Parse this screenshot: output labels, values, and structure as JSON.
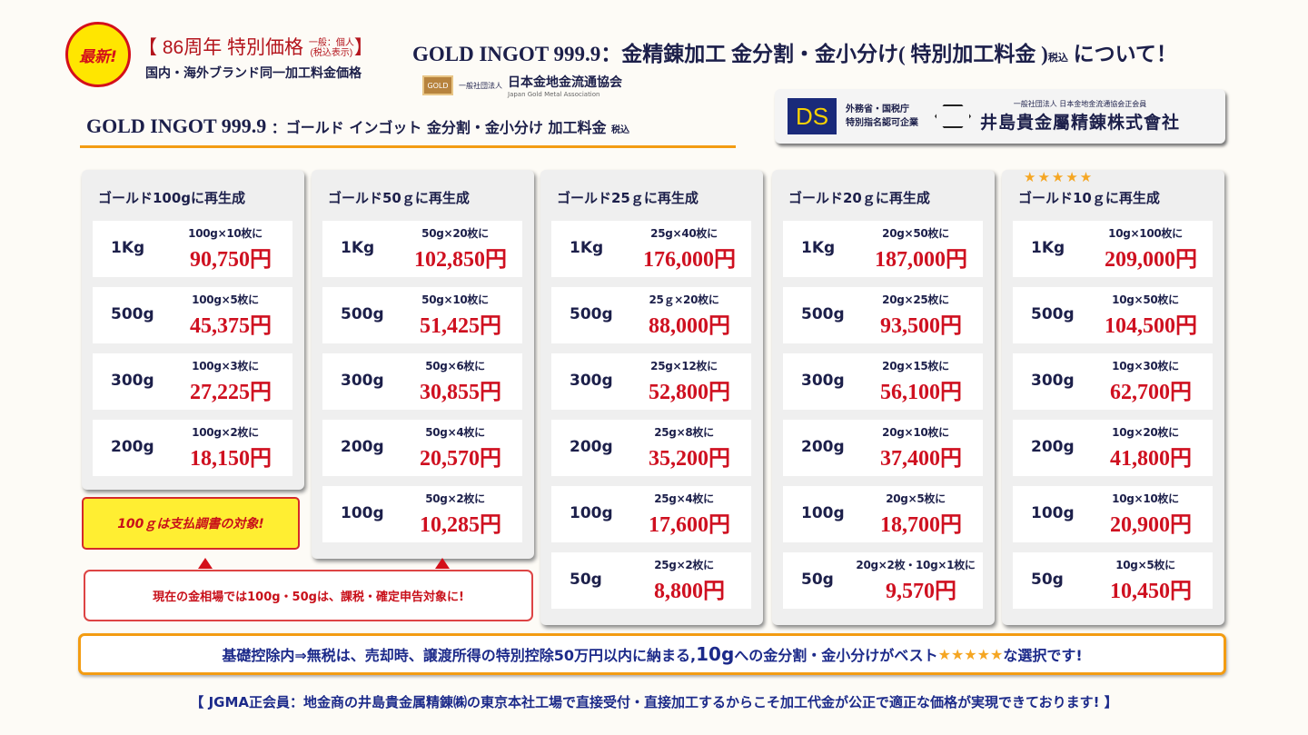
{
  "header": {
    "badge": "最新!",
    "anniversary": "【 86周年 特別価格",
    "tax_note_1": "一般：個人",
    "tax_note_2": "(税込表示)",
    "anniversary_close": "】",
    "subtitle": "国内・海外ブランド同一加工料金価格",
    "title": "GOLD INGOT 999.9：金精錬加工 金分割・金小分け( 特別加工料金 )",
    "title_tax": "税込",
    "title_end": "について！",
    "assoc_logo": "GOLD",
    "assoc_prefix": "一般社団法人",
    "assoc_name": "日本金地金流通協会",
    "assoc_en": "Japan Gold Metal Association"
  },
  "section": {
    "title_en": "GOLD INGOT 999.9",
    "title_jp": "：ゴールド インゴット 金分割・金小分け 加工料金",
    "tax": "税込"
  },
  "company": {
    "ds": "DS",
    "line1": "外務省・国税庁",
    "line2": "特別指名認可企業",
    "member": "一般社団法人 日本金地金流通協会正会員",
    "name": "井島貴金屬精錬株式會社"
  },
  "cards": [
    {
      "title": "ゴールド100gに再生成",
      "rows": [
        [
          "1Kg",
          "100g×10枚に",
          "90,750円"
        ],
        [
          "500g",
          "100g×5枚に",
          "45,375円"
        ],
        [
          "300g",
          "100g×3枚に",
          "27,225円"
        ],
        [
          "200g",
          "100g×2枚に",
          "18,150円"
        ]
      ]
    },
    {
      "title": "ゴールド50ｇに再生成",
      "rows": [
        [
          "1Kg",
          "50g×20枚に",
          "102,850円"
        ],
        [
          "500g",
          "50g×10枚に",
          "51,425円"
        ],
        [
          "300g",
          "50g×6枚に",
          "30,855円"
        ],
        [
          "200g",
          "50g×4枚に",
          "20,570円"
        ],
        [
          "100g",
          "50g×2枚に",
          "10,285円"
        ]
      ]
    },
    {
      "title": "ゴールド25ｇに再生成",
      "rows": [
        [
          "1Kg",
          "25g×40枚に",
          "176,000円"
        ],
        [
          "500g",
          "25ｇ×20枚に",
          "88,000円"
        ],
        [
          "300g",
          "25g×12枚に",
          "52,800円"
        ],
        [
          "200g",
          "25g×8枚に",
          "35,200円"
        ],
        [
          "100g",
          "25g×4枚に",
          "17,600円"
        ],
        [
          "50g",
          "25g×2枚に",
          "8,800円"
        ]
      ]
    },
    {
      "title": "ゴールド20ｇに再生成",
      "rows": [
        [
          "1Kg",
          "20g×50枚に",
          "187,000円"
        ],
        [
          "500g",
          "20g×25枚に",
          "93,500円"
        ],
        [
          "300g",
          "20g×15枚に",
          "56,100円"
        ],
        [
          "200g",
          "20g×10枚に",
          "37,400円"
        ],
        [
          "100g",
          "20g×5枚に",
          "18,700円"
        ],
        [
          "50g",
          "20g×2枚・10g×1枚に",
          "9,570円"
        ]
      ]
    },
    {
      "title": "ゴールド10ｇに再生成",
      "stars": "★★★★★",
      "rows": [
        [
          "1Kg",
          "10g×100枚に",
          "209,000円"
        ],
        [
          "500g",
          "10g×50枚に",
          "104,500円"
        ],
        [
          "300g",
          "10g×30枚に",
          "62,700円"
        ],
        [
          "200g",
          "10g×20枚に",
          "41,800円"
        ],
        [
          "100g",
          "10g×10枚に",
          "20,900円"
        ],
        [
          "50g",
          "10g×5枚に",
          "10,450円"
        ]
      ]
    }
  ],
  "notes": {
    "yellow": "100ｇは支払調書の対象!",
    "pink": "現在の金相場では100g・50gは、課税・確定申告対象に!"
  },
  "banner": {
    "pre": "基礎控除内⇒無税は、売却時、譲渡所得の特別控除50万円以内に納まる,",
    "big": "10g",
    "mid": "への金分割・金小分けがベスト",
    "stars": "★★★★★",
    "post": "な選択です!"
  },
  "footer": "【 JGMA正会員：地金商の井島貴金属精錬㈱の東京本社工場で直接受付・直接加工するからこそ加工代金が公正で適正な価格が実現できております! 】",
  "colors": {
    "price": "#cf1020",
    "navy": "#1c1f4a",
    "accent": "#f39c12",
    "badge": "#ffe600"
  }
}
